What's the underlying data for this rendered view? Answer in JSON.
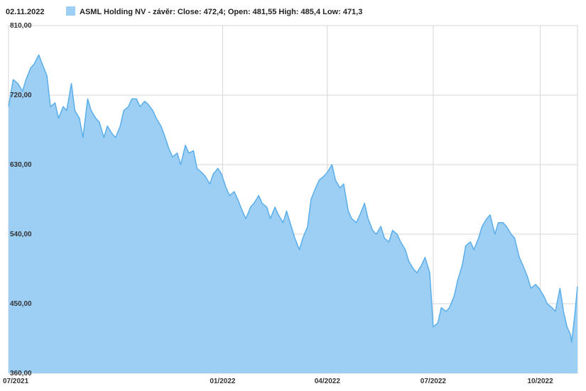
{
  "header": {
    "date": "02.11.2022",
    "legend_text": "ASML Holding NV - závěr: Close: 472,4; Open: 481,55 High: 485,4 Low: 471,3"
  },
  "colors": {
    "area_fill": "#9dcff5",
    "line": "#5aaeea",
    "grid": "#d6d6d6",
    "legend_swatch": "#9dcff5"
  },
  "chart_data": {
    "type": "area",
    "title": "",
    "xlabel": "",
    "ylabel": "",
    "ylim": [
      360,
      810
    ],
    "y_ticks": [
      "810,00",
      "720,00",
      "630,00",
      "540,00",
      "450,00",
      "360,00"
    ],
    "y_tick_values": [
      810,
      720,
      630,
      540,
      450,
      360
    ],
    "x_ticks": [
      "07/2021",
      "01/2022",
      "04/2022",
      "07/2022",
      "10/2022"
    ],
    "x_tick_dates": [
      "2021-07-01",
      "2022-01-01",
      "2022-04-01",
      "2022-07-01",
      "2022-10-01"
    ],
    "x_range": [
      "2021-07-01",
      "2022-11-02"
    ],
    "grid": true,
    "series": [
      {
        "name": "ASML Holding NV - závěr",
        "points": [
          [
            "2021-07-01",
            705
          ],
          [
            "2021-07-05",
            740
          ],
          [
            "2021-07-09",
            735
          ],
          [
            "2021-07-13",
            725
          ],
          [
            "2021-07-16",
            740
          ],
          [
            "2021-07-20",
            755
          ],
          [
            "2021-07-23",
            760
          ],
          [
            "2021-07-27",
            772
          ],
          [
            "2021-07-30",
            760
          ],
          [
            "2021-08-03",
            745
          ],
          [
            "2021-08-06",
            705
          ],
          [
            "2021-08-10",
            710
          ],
          [
            "2021-08-13",
            690
          ],
          [
            "2021-08-17",
            705
          ],
          [
            "2021-08-20",
            700
          ],
          [
            "2021-08-24",
            735
          ],
          [
            "2021-08-27",
            700
          ],
          [
            "2021-08-31",
            690
          ],
          [
            "2021-09-03",
            665
          ],
          [
            "2021-09-07",
            715
          ],
          [
            "2021-09-10",
            700
          ],
          [
            "2021-09-14",
            690
          ],
          [
            "2021-09-17",
            685
          ],
          [
            "2021-09-21",
            665
          ],
          [
            "2021-09-24",
            680
          ],
          [
            "2021-09-28",
            670
          ],
          [
            "2021-10-01",
            665
          ],
          [
            "2021-10-05",
            680
          ],
          [
            "2021-10-08",
            700
          ],
          [
            "2021-10-12",
            705
          ],
          [
            "2021-10-15",
            715
          ],
          [
            "2021-10-19",
            715
          ],
          [
            "2021-10-22",
            705
          ],
          [
            "2021-10-26",
            712
          ],
          [
            "2021-10-29",
            708
          ],
          [
            "2021-11-02",
            700
          ],
          [
            "2021-11-05",
            690
          ],
          [
            "2021-11-09",
            680
          ],
          [
            "2021-11-12",
            668
          ],
          [
            "2021-11-16",
            650
          ],
          [
            "2021-11-19",
            640
          ],
          [
            "2021-11-23",
            645
          ],
          [
            "2021-11-26",
            630
          ],
          [
            "2021-11-30",
            655
          ],
          [
            "2021-12-03",
            645
          ],
          [
            "2021-12-07",
            648
          ],
          [
            "2021-12-10",
            625
          ],
          [
            "2021-12-14",
            620
          ],
          [
            "2021-12-17",
            615
          ],
          [
            "2021-12-21",
            605
          ],
          [
            "2021-12-24",
            618
          ],
          [
            "2021-12-28",
            625
          ],
          [
            "2021-12-31",
            618
          ],
          [
            "2022-01-04",
            600
          ],
          [
            "2022-01-07",
            590
          ],
          [
            "2022-01-11",
            595
          ],
          [
            "2022-01-14",
            585
          ],
          [
            "2022-01-18",
            570
          ],
          [
            "2022-01-21",
            560
          ],
          [
            "2022-01-25",
            575
          ],
          [
            "2022-01-28",
            580
          ],
          [
            "2022-02-01",
            590
          ],
          [
            "2022-02-04",
            580
          ],
          [
            "2022-02-08",
            575
          ],
          [
            "2022-02-11",
            560
          ],
          [
            "2022-02-15",
            575
          ],
          [
            "2022-02-18",
            565
          ],
          [
            "2022-02-22",
            555
          ],
          [
            "2022-02-25",
            570
          ],
          [
            "2022-03-01",
            550
          ],
          [
            "2022-03-04",
            535
          ],
          [
            "2022-03-08",
            520
          ],
          [
            "2022-03-11",
            535
          ],
          [
            "2022-03-15",
            550
          ],
          [
            "2022-03-18",
            585
          ],
          [
            "2022-03-22",
            600
          ],
          [
            "2022-03-25",
            610
          ],
          [
            "2022-03-29",
            615
          ],
          [
            "2022-04-01",
            620
          ],
          [
            "2022-04-05",
            630
          ],
          [
            "2022-04-08",
            610
          ],
          [
            "2022-04-12",
            600
          ],
          [
            "2022-04-15",
            605
          ],
          [
            "2022-04-19",
            570
          ],
          [
            "2022-04-22",
            560
          ],
          [
            "2022-04-26",
            555
          ],
          [
            "2022-04-29",
            565
          ],
          [
            "2022-05-03",
            580
          ],
          [
            "2022-05-06",
            560
          ],
          [
            "2022-05-10",
            545
          ],
          [
            "2022-05-13",
            540
          ],
          [
            "2022-05-17",
            550
          ],
          [
            "2022-05-20",
            535
          ],
          [
            "2022-05-24",
            530
          ],
          [
            "2022-05-27",
            545
          ],
          [
            "2022-05-31",
            540
          ],
          [
            "2022-06-03",
            530
          ],
          [
            "2022-06-07",
            520
          ],
          [
            "2022-06-10",
            505
          ],
          [
            "2022-06-14",
            495
          ],
          [
            "2022-06-17",
            490
          ],
          [
            "2022-06-21",
            500
          ],
          [
            "2022-06-24",
            510
          ],
          [
            "2022-06-28",
            490
          ],
          [
            "2022-07-01",
            420
          ],
          [
            "2022-07-05",
            425
          ],
          [
            "2022-07-08",
            445
          ],
          [
            "2022-07-12",
            440
          ],
          [
            "2022-07-15",
            445
          ],
          [
            "2022-07-19",
            460
          ],
          [
            "2022-07-22",
            480
          ],
          [
            "2022-07-26",
            500
          ],
          [
            "2022-07-29",
            525
          ],
          [
            "2022-08-02",
            530
          ],
          [
            "2022-08-05",
            520
          ],
          [
            "2022-08-09",
            535
          ],
          [
            "2022-08-12",
            550
          ],
          [
            "2022-08-16",
            560
          ],
          [
            "2022-08-19",
            565
          ],
          [
            "2022-08-23",
            540
          ],
          [
            "2022-08-26",
            555
          ],
          [
            "2022-08-30",
            555
          ],
          [
            "2022-09-02",
            550
          ],
          [
            "2022-09-06",
            540
          ],
          [
            "2022-09-09",
            535
          ],
          [
            "2022-09-13",
            510
          ],
          [
            "2022-09-16",
            500
          ],
          [
            "2022-09-20",
            485
          ],
          [
            "2022-09-23",
            470
          ],
          [
            "2022-09-27",
            475
          ],
          [
            "2022-09-30",
            470
          ],
          [
            "2022-10-04",
            460
          ],
          [
            "2022-10-07",
            450
          ],
          [
            "2022-10-11",
            445
          ],
          [
            "2022-10-14",
            440
          ],
          [
            "2022-10-18",
            470
          ],
          [
            "2022-10-21",
            440
          ],
          [
            "2022-10-24",
            420
          ],
          [
            "2022-10-27",
            410
          ],
          [
            "2022-10-28",
            400
          ],
          [
            "2022-10-31",
            440
          ],
          [
            "2022-11-02",
            472.4
          ]
        ]
      }
    ]
  }
}
